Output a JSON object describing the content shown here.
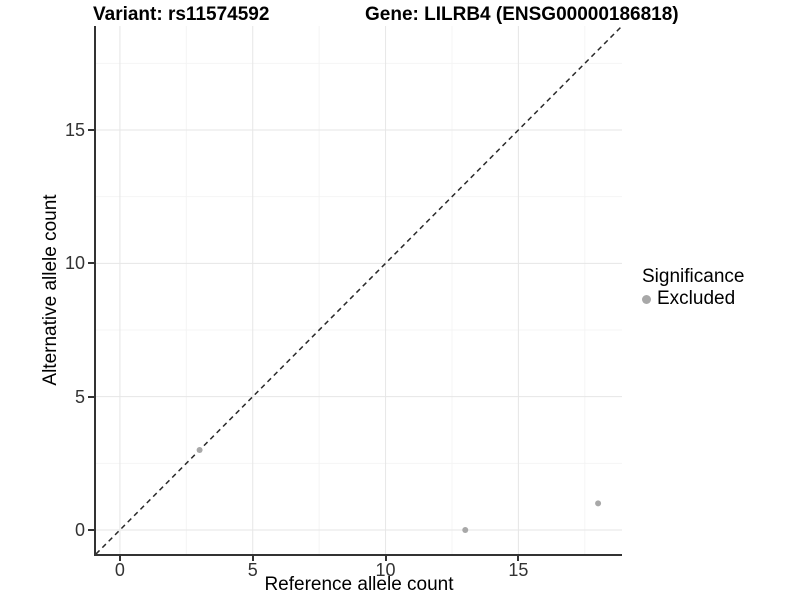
{
  "titles": {
    "variant": "Variant: rs11574592",
    "gene": "Gene: LILRB4 (ENSG00000186818)"
  },
  "axes": {
    "x": {
      "label": "Reference allele count"
    },
    "y": {
      "label": "Alternative allele count"
    }
  },
  "legend": {
    "title": "Significance",
    "items": [
      {
        "label": "Excluded",
        "color": "#a8a8a8"
      }
    ]
  },
  "chart_data": {
    "type": "scatter",
    "title": "Variant: rs11574592 | Gene: LILRB4 (ENSG00000186818)",
    "xlabel": "Reference allele count",
    "ylabel": "Alternative allele count",
    "xlim": [
      -0.9,
      18.9
    ],
    "ylim": [
      -0.9,
      18.9
    ],
    "x_ticks": [
      0,
      5,
      10,
      15
    ],
    "y_ticks": [
      0,
      5,
      10,
      15
    ],
    "grid_major": [
      0,
      5,
      10,
      15
    ],
    "grid_minor": [
      2.5,
      7.5,
      12.5,
      17.5
    ],
    "series": [
      {
        "name": "Excluded",
        "color": "#a8a8a8",
        "points": [
          [
            3,
            3
          ],
          [
            13,
            0
          ],
          [
            18,
            1
          ]
        ]
      }
    ],
    "reference_line": {
      "type": "identity y=x",
      "style": "dashed",
      "color": "#2a2a2a"
    },
    "legend_position": "right",
    "grid": true
  },
  "colors": {
    "background": "#ffffff",
    "axis_line": "#333333",
    "grid_major": "#e6e6e6",
    "grid_minor": "#f4f4f4",
    "point": "#a8a8a8",
    "dashed_line": "#2a2a2a",
    "title_text": "#000000",
    "tick_text": "#333333"
  }
}
